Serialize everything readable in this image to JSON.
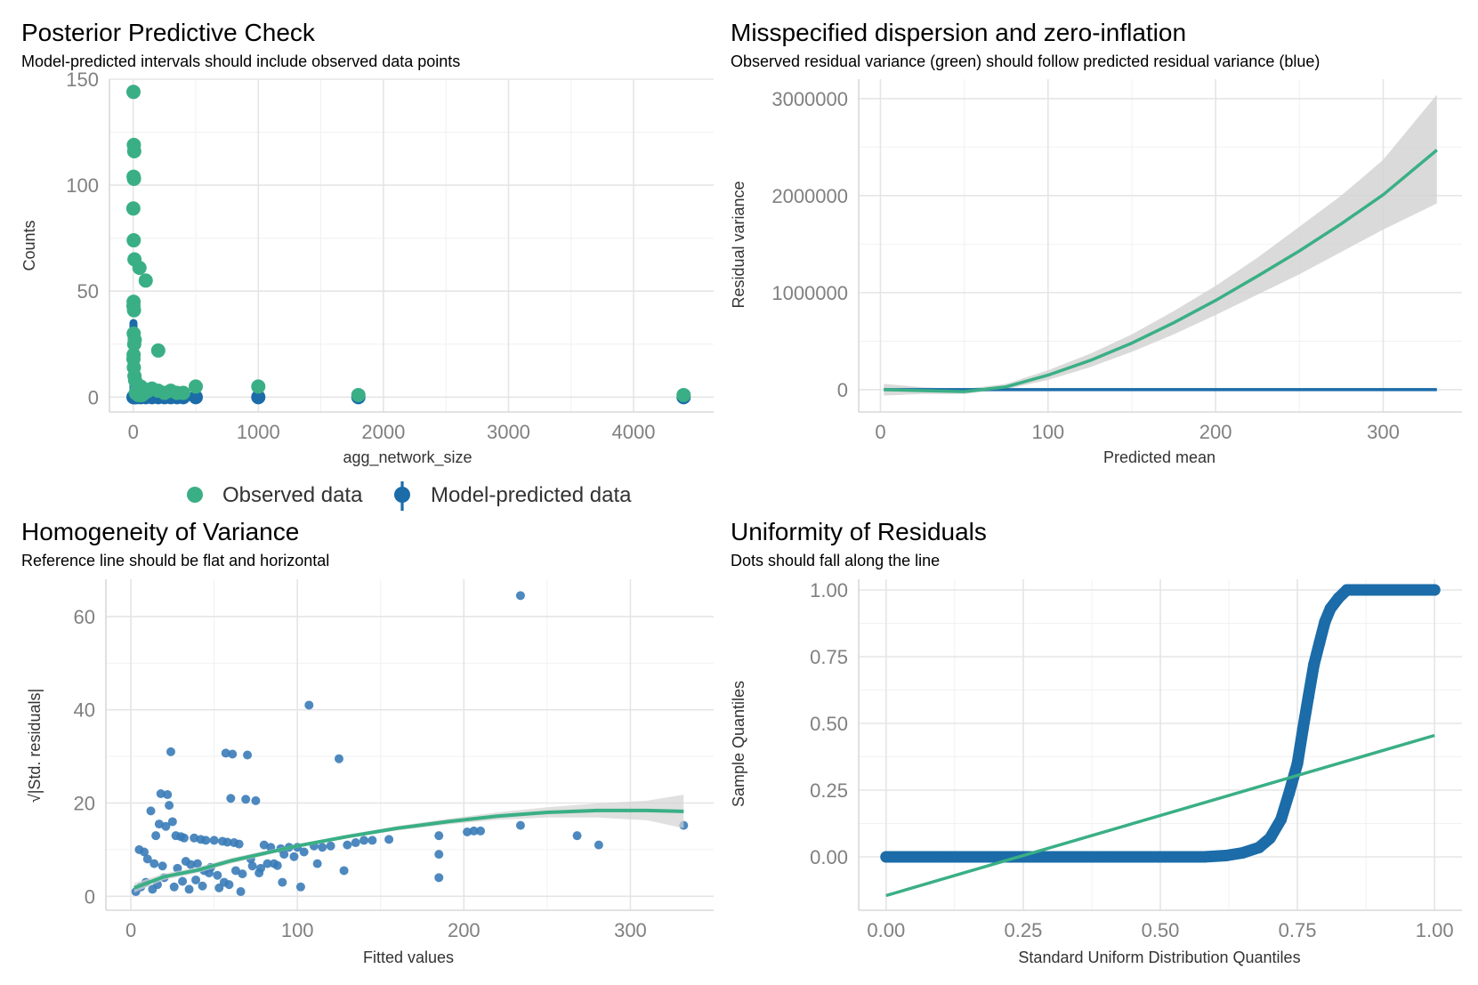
{
  "colors": {
    "observed": "#3aaf85",
    "predicted": "#1b6ca8",
    "band": "#d3d3d3"
  },
  "legend": {
    "observed_label": "Observed data",
    "predicted_label": "Model-predicted data"
  },
  "chart_data": [
    {
      "id": "ppc",
      "type": "scatter",
      "title": "Posterior Predictive Check",
      "subtitle": "Model-predicted intervals should include observed data points",
      "xlabel": "agg_network_size",
      "ylabel": "Counts",
      "xlim": [
        -190,
        4640
      ],
      "ylim": [
        -7,
        150
      ],
      "xticks": [
        0,
        1000,
        2000,
        3000,
        4000
      ],
      "yticks": [
        0,
        50,
        100,
        150
      ],
      "observed": {
        "x": [
          2,
          5,
          8,
          3,
          6,
          1,
          4,
          10,
          50,
          100,
          3,
          2,
          6,
          4,
          12,
          8,
          200,
          3,
          2,
          5,
          10,
          15,
          30,
          60,
          80,
          120,
          150,
          200,
          250,
          300,
          350,
          400,
          500,
          1000,
          1800,
          4400,
          20,
          40,
          70,
          90
        ],
        "y": [
          144,
          119,
          116,
          104,
          103,
          89,
          74,
          65,
          61,
          55,
          45,
          43,
          41,
          30,
          27,
          25,
          22,
          20,
          18,
          14,
          10,
          8,
          6,
          5,
          4,
          3,
          4,
          3,
          2,
          3,
          2,
          2,
          5,
          5,
          1,
          1,
          2,
          1,
          1,
          2
        ]
      },
      "predicted": {
        "x": [
          2,
          6,
          10,
          30,
          60,
          100,
          150,
          200,
          250,
          300,
          350,
          400,
          500,
          1000,
          1800,
          4400
        ],
        "ylow": [
          0,
          0,
          0,
          0,
          0,
          0,
          0,
          0,
          0,
          0,
          0,
          0,
          0,
          0,
          0,
          0
        ],
        "yhigh": [
          35,
          30,
          25,
          5,
          3,
          2,
          2,
          1,
          1,
          1,
          1,
          1,
          1,
          1,
          1,
          1
        ]
      }
    },
    {
      "id": "dispersion",
      "type": "line",
      "title": "Misspecified dispersion and zero-inflation",
      "subtitle": "Observed residual variance (green) should follow predicted residual variance (blue)",
      "xlabel": "Predicted mean",
      "ylabel": "Residual variance",
      "xlim": [
        -13,
        347
      ],
      "ylim": [
        -230000,
        3200000
      ],
      "xticks": [
        0,
        100,
        200,
        300
      ],
      "yticks": [
        0,
        1000000,
        2000000,
        3000000
      ],
      "observed_curve": {
        "x": [
          2,
          25,
          50,
          75,
          100,
          125,
          150,
          175,
          200,
          225,
          250,
          275,
          300,
          332
        ],
        "y": [
          0,
          -10000,
          -20000,
          30000,
          150000,
          300000,
          480000,
          690000,
          920000,
          1170000,
          1430000,
          1710000,
          2010000,
          2470000
        ],
        "ci_low": [
          -60000,
          -45000,
          -45000,
          5000,
          100000,
          230000,
          390000,
          570000,
          770000,
          980000,
          1190000,
          1420000,
          1650000,
          1920000
        ],
        "ci_high": [
          60000,
          25000,
          5000,
          60000,
          200000,
          370000,
          570000,
          810000,
          1070000,
          1360000,
          1680000,
          2000000,
          2370000,
          3040000
        ]
      },
      "predicted_curve": {
        "x": [
          2,
          332
        ],
        "y": [
          0,
          0
        ]
      }
    },
    {
      "id": "homogeneity",
      "type": "scatter",
      "title": "Homogeneity of Variance",
      "subtitle": "Reference line should be flat and horizontal",
      "xlabel": "Fitted values",
      "ylabel": "√|Std. residuals|",
      "xlim": [
        -15,
        350
      ],
      "ylim": [
        -3,
        68
      ],
      "xticks": [
        0,
        100,
        200,
        300
      ],
      "yticks": [
        0,
        20,
        40,
        60
      ],
      "points": {
        "x": [
          234,
          107,
          125,
          24,
          57,
          61,
          70,
          18,
          22,
          60,
          69,
          75,
          12,
          23,
          25,
          17,
          21,
          15,
          27,
          30,
          32,
          38,
          42,
          45,
          50,
          55,
          58,
          62,
          65,
          80,
          84,
          90,
          95,
          100,
          110,
          115,
          120,
          130,
          135,
          140,
          145,
          155,
          185,
          185,
          202,
          206,
          210,
          234,
          268,
          281,
          332,
          5,
          8,
          10,
          14,
          19,
          28,
          33,
          36,
          40,
          44,
          48,
          52,
          56,
          63,
          67,
          72,
          78,
          86,
          92,
          98,
          104,
          112,
          128,
          185,
          91,
          102,
          3,
          6,
          9,
          13,
          16,
          20,
          26,
          31,
          35,
          39,
          43,
          47,
          53,
          59,
          66,
          73,
          77,
          82,
          88
        ],
        "y": [
          64.5,
          41,
          29.5,
          31,
          30.7,
          30.5,
          30.3,
          22,
          21.8,
          21,
          20.8,
          20.5,
          18.3,
          19.5,
          16,
          15.5,
          15,
          13,
          13,
          12.8,
          12.5,
          12.5,
          12.2,
          12,
          12,
          11.8,
          11.6,
          11.5,
          11.2,
          11,
          10.5,
          10.2,
          10.5,
          10.5,
          10.8,
          10.5,
          10.8,
          11,
          11.5,
          12,
          12,
          12.2,
          13,
          9,
          13.8,
          14,
          14,
          15.2,
          13,
          11,
          15.2,
          10,
          9.5,
          8,
          7,
          6.5,
          6,
          7.5,
          6.8,
          7,
          5.5,
          6.2,
          4.5,
          3,
          5.5,
          4.8,
          8,
          6,
          7,
          9,
          8.5,
          9.5,
          7,
          5.5,
          4,
          3,
          2,
          1,
          2,
          3,
          1.5,
          2.5,
          4,
          2,
          3.2,
          1.5,
          3.5,
          2.2,
          5,
          1.8,
          2.5,
          1,
          6.5,
          5,
          7,
          6.6
        ],
        "color": "#3a7cb8"
      },
      "smooth": {
        "x": [
          2,
          20,
          40,
          60,
          80,
          100,
          130,
          160,
          190,
          220,
          250,
          280,
          310,
          332
        ],
        "y": [
          1.8,
          4.2,
          5.6,
          7.6,
          9.2,
          10.8,
          12.8,
          14.6,
          16.0,
          17.2,
          18.0,
          18.4,
          18.4,
          18.2
        ],
        "ci_low": [
          0.8,
          3.5,
          5.0,
          7.0,
          8.7,
          10.4,
          12.4,
          14.1,
          15.4,
          16.4,
          16.9,
          16.9,
          16.3,
          14.6
        ],
        "ci_high": [
          2.8,
          4.9,
          6.2,
          8.2,
          9.7,
          11.2,
          13.2,
          15.1,
          16.6,
          18.0,
          19.1,
          19.9,
          20.5,
          21.8
        ]
      }
    },
    {
      "id": "uniformity",
      "type": "scatter",
      "title": "Uniformity of Residuals",
      "subtitle": "Dots should fall along the line",
      "xlabel": "Standard Uniform Distribution Quantiles",
      "ylabel": "Sample Quantiles",
      "xlim": [
        -0.05,
        1.05
      ],
      "ylim": [
        -0.2,
        1.04
      ],
      "xticks": [
        0,
        0.25,
        0.5,
        0.75,
        1
      ],
      "xtick_labels": [
        "0.00",
        "0.25",
        "0.50",
        "0.75",
        "1.00"
      ],
      "yticks": [
        0,
        0.25,
        0.5,
        0.75,
        1
      ],
      "ytick_labels": [
        "0.00",
        "0.25",
        "0.50",
        "0.75",
        "1.00"
      ],
      "sample": {
        "x": [
          0,
          0.1,
          0.2,
          0.3,
          0.4,
          0.5,
          0.58,
          0.62,
          0.65,
          0.68,
          0.7,
          0.72,
          0.735,
          0.75,
          0.76,
          0.77,
          0.78,
          0.79,
          0.8,
          0.81,
          0.825,
          0.84,
          0.86,
          0.9,
          0.95,
          1.0
        ],
        "y": [
          0,
          0,
          0,
          0,
          0,
          0,
          0,
          0.005,
          0.015,
          0.035,
          0.07,
          0.14,
          0.24,
          0.35,
          0.48,
          0.6,
          0.72,
          0.8,
          0.88,
          0.93,
          0.97,
          1.0,
          1.0,
          1.0,
          1.0,
          1.0
        ]
      },
      "reference_line": {
        "x": [
          0,
          1
        ],
        "y": [
          -0.145,
          0.455
        ]
      }
    }
  ]
}
